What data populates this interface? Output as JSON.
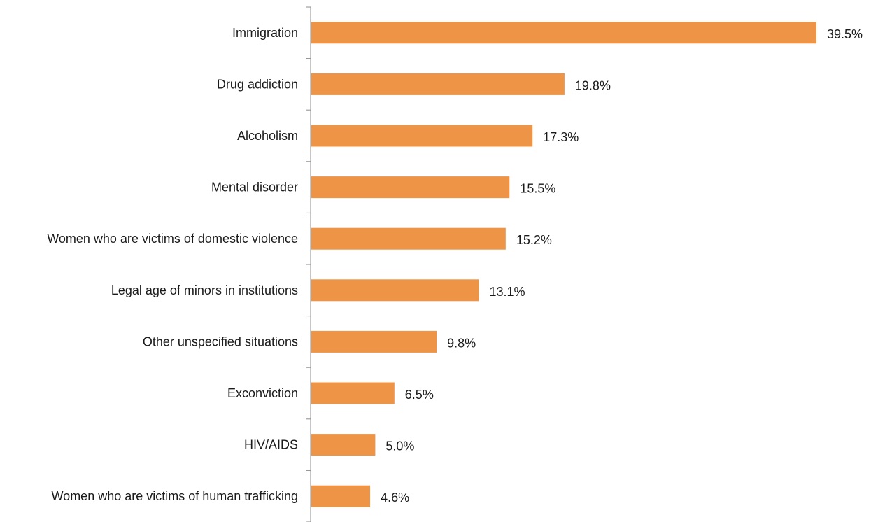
{
  "chart_data": {
    "type": "bar",
    "orientation": "horizontal",
    "categories": [
      "Immigration",
      "Drug addiction",
      "Alcoholism",
      "Mental disorder",
      "Women who are victims of domestic violence",
      "Legal age of minors in institutions",
      "Other unspecified situations",
      "Exconviction",
      "HIV/AIDS",
      "Women who are victims of human trafficking"
    ],
    "values": [
      39.5,
      19.8,
      17.3,
      15.5,
      15.2,
      13.1,
      9.8,
      6.5,
      5.0,
      4.6
    ],
    "value_labels": [
      "39.5%",
      "19.8%",
      "17.3%",
      "15.5%",
      "15.2%",
      "13.1%",
      "9.8%",
      "6.5%",
      "5.0%",
      "4.6%"
    ],
    "xlim": [
      0,
      39.5
    ],
    "grid": false,
    "legend": "none",
    "bar_color": "#ED9447",
    "axis_color": "#8C8C8C"
  }
}
